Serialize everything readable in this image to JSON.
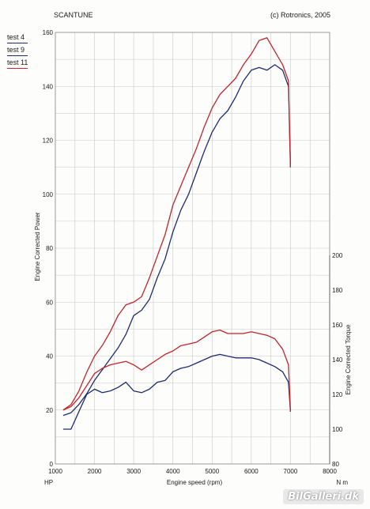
{
  "header": {
    "app_name": "SCANTUNE",
    "copyright": "(c) Rotronics, 2005"
  },
  "legend": [
    {
      "label": "test 4",
      "color": "#1e2a6e"
    },
    {
      "label": "test 9",
      "color": "#1e2a6e"
    },
    {
      "label": "test 11",
      "color": "#c0242c"
    }
  ],
  "footer": {
    "left_unit": "HP",
    "right_unit": "N m",
    "watermark": "BilGalleri.dk"
  },
  "colors": {
    "grid": "#c8c8c8",
    "blue": "#1e2a6e",
    "red": "#c0242c"
  },
  "chart_data": {
    "type": "line",
    "xlabel": "Engine speed (rpm)",
    "ylabel": "Engine Corrected Power",
    "y2label": "Engine Corrected Torque",
    "xlim": [
      1000,
      8000
    ],
    "ylim": [
      0,
      160
    ],
    "y2lim": [
      80,
      200
    ],
    "xticks": [
      1000,
      2000,
      3000,
      4000,
      5000,
      6000,
      7000,
      8000
    ],
    "yticks": [
      0,
      20,
      40,
      60,
      80,
      100,
      120,
      140,
      160
    ],
    "y2ticks": [
      80,
      100,
      120,
      140,
      160,
      180,
      200
    ],
    "grid": true,
    "series": [
      {
        "name": "test 4",
        "axis": "power",
        "color": "#1e2a6e",
        "x": [
          1200,
          1400,
          1600,
          1800,
          2000,
          2200,
          2400,
          2600,
          2800,
          3000,
          3200,
          3400,
          3600,
          3800,
          4000,
          4200,
          4400,
          4600,
          4800,
          5000,
          5200,
          5400,
          5600,
          5800,
          6000,
          6200,
          6400,
          6600,
          6800,
          6950,
          7000
        ],
        "y": [
          18,
          19,
          22,
          26,
          31,
          35,
          39,
          43,
          48,
          55,
          57,
          61,
          69,
          76,
          86,
          94,
          100,
          108,
          116,
          123,
          128,
          131,
          136,
          142,
          146,
          147,
          146,
          148,
          146,
          140,
          110
        ]
      },
      {
        "name": "test 11",
        "axis": "power",
        "color": "#c0242c",
        "x": [
          1200,
          1400,
          1600,
          1800,
          2000,
          2200,
          2400,
          2600,
          2800,
          3000,
          3200,
          3400,
          3600,
          3800,
          4000,
          4200,
          4400,
          4600,
          4800,
          5000,
          5200,
          5400,
          5600,
          5800,
          6000,
          6200,
          6400,
          6600,
          6800,
          6950,
          7000
        ],
        "y": [
          20,
          22,
          27,
          34,
          40,
          44,
          49,
          55,
          59,
          60,
          62,
          69,
          77,
          85,
          96,
          103,
          110,
          117,
          125,
          132,
          137,
          140,
          143,
          148,
          152,
          157,
          158,
          153,
          148,
          142,
          110
        ]
      },
      {
        "name": "test 4",
        "axis": "torque",
        "color": "#1e2a6e",
        "x": [
          1200,
          1400,
          1600,
          1800,
          2000,
          2200,
          2400,
          2600,
          2800,
          3000,
          3200,
          3400,
          3600,
          3800,
          4000,
          4200,
          4400,
          4600,
          4800,
          5000,
          5200,
          5400,
          5600,
          5800,
          6000,
          6200,
          6400,
          6600,
          6800,
          6950,
          7000
        ],
        "y": [
          100,
          100,
          110,
          120,
          123,
          121,
          122,
          124,
          127,
          122,
          121,
          123,
          127,
          128,
          133,
          135,
          136,
          138,
          140,
          142,
          143,
          142,
          141,
          141,
          141,
          140,
          138,
          136,
          133,
          127,
          110
        ]
      },
      {
        "name": "test 11",
        "axis": "torque",
        "color": "#c0242c",
        "x": [
          1200,
          1400,
          1600,
          1800,
          2000,
          2200,
          2400,
          2600,
          2800,
          3000,
          3200,
          3400,
          3600,
          3800,
          4000,
          4200,
          4400,
          4600,
          4800,
          5000,
          5200,
          5400,
          5600,
          5800,
          6000,
          6200,
          6400,
          6600,
          6800,
          6950,
          7000
        ],
        "y": [
          111,
          113,
          118,
          125,
          132,
          135,
          137,
          138,
          139,
          137,
          134,
          137,
          140,
          143,
          145,
          148,
          149,
          150,
          153,
          156,
          157,
          155,
          155,
          155,
          156,
          155,
          154,
          152,
          146,
          137,
          110
        ]
      }
    ]
  }
}
